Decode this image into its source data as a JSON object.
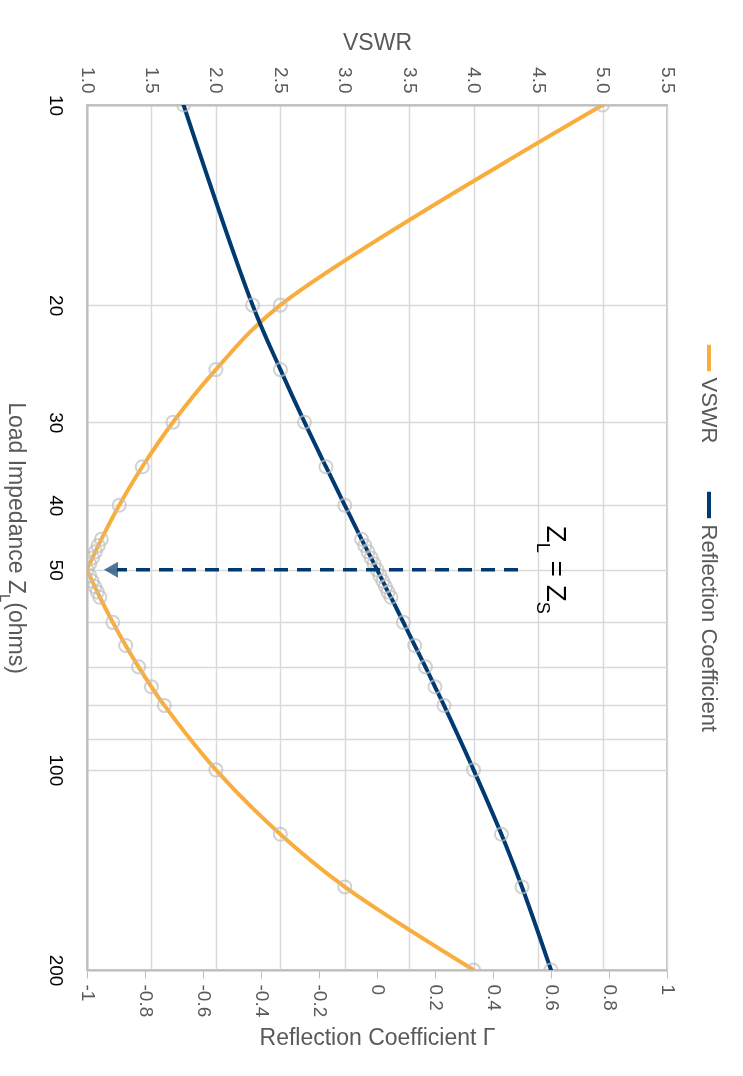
{
  "chart_data": {
    "type": "line",
    "xlabel": "Reflection Coefficient Γ",
    "x2label": "VSWR",
    "ylabel": "Load Impedance Z$_{L}$(ohms)",
    "series": [
      {
        "name": "VSWR",
        "color": "#f9ad3c",
        "axis": "x2",
        "x": [
          5,
          2.5,
          2,
          1.667,
          1.429,
          1.25,
          1.111,
          1.087,
          1.064,
          1.042,
          1.02,
          1,
          1.02,
          1.04,
          1.06,
          1.08,
          1.1,
          1.2,
          1.3,
          1.4,
          1.5,
          1.6,
          2,
          2.5,
          3,
          4
        ],
        "values": [
          10,
          20,
          25,
          30,
          35,
          40,
          45,
          46,
          47,
          48,
          49,
          50,
          51,
          52,
          53,
          54,
          55,
          60,
          65,
          70,
          75,
          80,
          100,
          125,
          150,
          200
        ]
      },
      {
        "name": "Reflection Coefficient",
        "color": "#003a70",
        "x": [
          -0.667,
          -0.429,
          -0.333,
          -0.25,
          -0.176,
          -0.111,
          -0.053,
          -0.042,
          -0.031,
          -0.02,
          -0.01,
          0,
          0.01,
          0.02,
          0.029,
          0.038,
          0.048,
          0.091,
          0.13,
          0.167,
          0.2,
          0.231,
          0.333,
          0.429,
          0.5,
          0.6
        ],
        "values": [
          10,
          20,
          25,
          30,
          35,
          40,
          45,
          46,
          47,
          48,
          49,
          50,
          51,
          52,
          53,
          54,
          55,
          60,
          65,
          70,
          75,
          80,
          100,
          125,
          150,
          200
        ]
      }
    ],
    "log": "y",
    "ylim": [
      200,
      10
    ],
    "yticks": [
      10,
      20,
      30,
      40,
      50,
      {
        "value": 60,
        "label": null
      },
      {
        "value": 70,
        "label": null
      },
      {
        "value": 80,
        "label": null
      },
      {
        "value": 90,
        "label": null
      },
      100,
      200
    ],
    "x2lim": [
      1,
      5.5
    ],
    "x2ticks": [
      {
        "value": 1,
        "label": "1.0"
      },
      1.5,
      {
        "value": 2,
        "label": "2.0"
      },
      2.5,
      {
        "value": 3,
        "label": "3.0"
      },
      3.5,
      {
        "value": 4,
        "label": "4.0"
      },
      4.5,
      {
        "value": 5,
        "label": "5.0"
      },
      5.5
    ],
    "xlim": [
      -1,
      1
    ],
    "xticks": [
      -1,
      -0.8,
      -0.6,
      -0.4,
      -0.2,
      0,
      0.2,
      0.4,
      0.6,
      0.8,
      1
    ],
    "annotations": [
      "Z$_{L}$ = Z$_{S}$"
    ],
    "grid": true,
    "legend": "right",
    "marker": "circle",
    "line_style": "solid"
  }
}
